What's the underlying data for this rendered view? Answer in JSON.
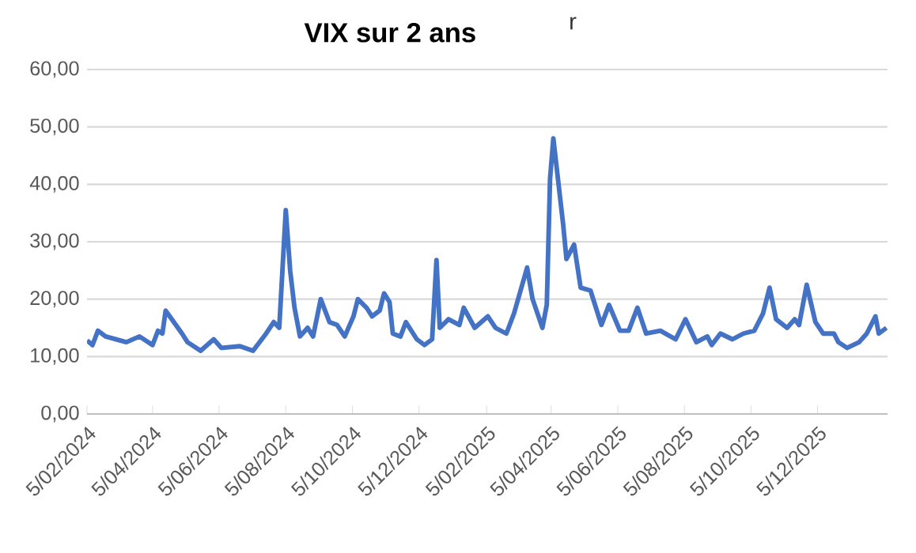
{
  "chart_data": {
    "type": "line",
    "title": "VIX sur 2 ans",
    "annotations": [
      "r"
    ],
    "x": [
      "2024-02-05",
      "2024-02-10",
      "2024-02-15",
      "2024-02-22",
      "2024-03-12",
      "2024-03-24",
      "2024-04-05",
      "2024-04-10",
      "2024-04-14",
      "2024-04-17",
      "2024-05-02",
      "2024-05-07",
      "2024-05-19",
      "2024-05-31",
      "2024-06-07",
      "2024-06-24",
      "2024-07-06",
      "2024-07-18",
      "2024-07-25",
      "2024-07-30",
      "2024-08-05",
      "2024-08-09",
      "2024-08-13",
      "2024-08-18",
      "2024-08-25",
      "2024-08-30",
      "2024-09-06",
      "2024-09-14",
      "2024-09-21",
      "2024-09-28",
      "2024-10-06",
      "2024-10-10",
      "2024-10-18",
      "2024-10-23",
      "2024-10-30",
      "2024-11-03",
      "2024-11-08",
      "2024-11-11",
      "2024-11-18",
      "2024-11-23",
      "2024-12-03",
      "2024-12-10",
      "2024-12-17",
      "2024-12-21",
      "2024-12-24",
      "2025-01-01",
      "2025-01-11",
      "2025-01-15",
      "2025-01-25",
      "2025-02-06",
      "2025-02-13",
      "2025-02-23",
      "2025-03-02",
      "2025-03-14",
      "2025-03-19",
      "2025-03-28",
      "2025-04-01",
      "2025-04-04",
      "2025-04-07",
      "2025-04-16",
      "2025-04-19",
      "2025-04-26",
      "2025-05-02",
      "2025-05-11",
      "2025-05-21",
      "2025-05-28",
      "2025-06-07",
      "2025-06-15",
      "2025-06-23",
      "2025-07-01",
      "2025-07-14",
      "2025-07-28",
      "2025-08-06",
      "2025-08-16",
      "2025-08-26",
      "2025-08-30",
      "2025-09-07",
      "2025-09-18",
      "2025-09-28",
      "2025-10-08",
      "2025-10-16",
      "2025-10-22",
      "2025-10-28",
      "2025-11-07",
      "2025-11-14",
      "2025-11-18",
      "2025-11-25",
      "2025-12-03",
      "2025-12-10",
      "2025-12-20",
      "2025-12-24",
      "2026-01-01",
      "2026-01-12",
      "2026-01-19",
      "2026-01-27",
      "2026-01-30",
      "2026-02-06"
    ],
    "series": [
      {
        "color": "#4472c4",
        "values": [
          12.8,
          12,
          14.5,
          13.5,
          12.5,
          13.5,
          12,
          14.5,
          14,
          18,
          14,
          12.5,
          11,
          13,
          11.5,
          11.8,
          11,
          14,
          16,
          15,
          35.5,
          25,
          18.5,
          13.5,
          15,
          13.5,
          20,
          16,
          15.5,
          13.5,
          17,
          20,
          18.5,
          17,
          18,
          21,
          19.5,
          14,
          13.5,
          16,
          13,
          12,
          13,
          26.8,
          15,
          16.5,
          15.5,
          18.5,
          15,
          17,
          15,
          14,
          17.5,
          25.5,
          20,
          15,
          19,
          41,
          48,
          33,
          27,
          29.5,
          22,
          21.5,
          15.5,
          19,
          14.5,
          14.5,
          18.5,
          14,
          14.5,
          13,
          16.5,
          12.5,
          13.5,
          12,
          14,
          13,
          14,
          14.5,
          17.5,
          22,
          16.5,
          15,
          16.5,
          15.5,
          22.5,
          16,
          14,
          14,
          12.5,
          11.5,
          12.5,
          14,
          17,
          14,
          15
        ]
      }
    ],
    "xlim": [
      "2024-02-05",
      "2026-02-07"
    ],
    "xticks": [
      {
        "value": "2024-02-05",
        "label": "5/02/2024"
      },
      {
        "value": "2024-04-05",
        "label": "5/04/2024"
      },
      {
        "value": "2024-06-05",
        "label": "5/06/2024"
      },
      {
        "value": "2024-08-05",
        "label": "5/08/2024"
      },
      {
        "value": "2024-10-05",
        "label": "5/10/2024"
      },
      {
        "value": "2024-12-05",
        "label": "5/12/2024"
      },
      {
        "value": "2025-02-05",
        "label": "5/02/2025"
      },
      {
        "value": "2025-04-05",
        "label": "5/04/2025"
      },
      {
        "value": "2025-06-05",
        "label": "5/06/2025"
      },
      {
        "value": "2025-08-05",
        "label": "5/08/2025"
      },
      {
        "value": "2025-10-05",
        "label": "5/10/2025"
      },
      {
        "value": "2025-12-05",
        "label": "5/12/2025"
      }
    ],
    "ylim": [
      0,
      60
    ],
    "yticks": [
      {
        "value": 0,
        "label": "0,00"
      },
      {
        "value": 10,
        "label": "10,00"
      },
      {
        "value": 20,
        "label": "20,00"
      },
      {
        "value": 30,
        "label": "30,00"
      },
      {
        "value": 40,
        "label": "40,00"
      },
      {
        "value": 50,
        "label": "50,00"
      },
      {
        "value": 60,
        "label": "60,00"
      }
    ],
    "grid": "y",
    "marker": "none",
    "line_style": "solid"
  }
}
